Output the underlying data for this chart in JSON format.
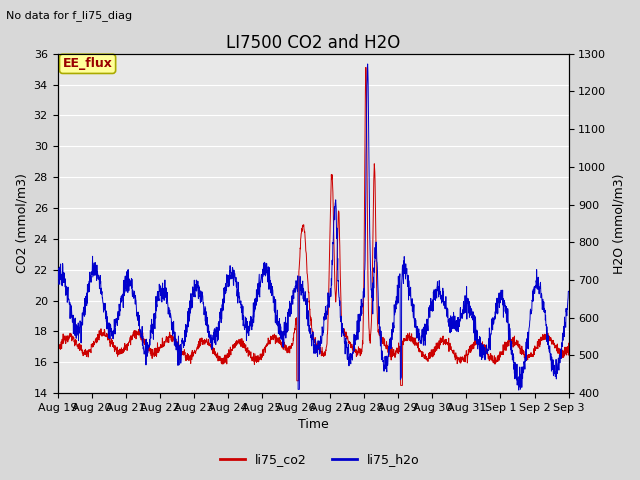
{
  "title": "LI7500 CO2 and H2O",
  "top_left_text": "No data for f_li75_diag",
  "xlabel": "Time",
  "ylabel_left": "CO2 (mmol/m3)",
  "ylabel_right": "H2O (mmol/m3)",
  "ylim_left": [
    14,
    36
  ],
  "ylim_right": [
    400,
    1300
  ],
  "yticks_left": [
    14,
    16,
    18,
    20,
    22,
    24,
    26,
    28,
    30,
    32,
    34,
    36
  ],
  "yticks_right": [
    400,
    500,
    600,
    700,
    800,
    900,
    1000,
    1100,
    1200,
    1300
  ],
  "xtick_labels": [
    "Aug 19",
    "Aug 20",
    "Aug 21",
    "Aug 22",
    "Aug 23",
    "Aug 24",
    "Aug 25",
    "Aug 26",
    "Aug 27",
    "Aug 28",
    "Aug 29",
    "Aug 30",
    "Aug 31",
    "Sep 1",
    "Sep 2",
    "Sep 3"
  ],
  "legend_labels": [
    "li75_co2",
    "li75_h2o"
  ],
  "co2_color": "#cc0000",
  "h2o_color": "#0000cc",
  "fig_bg_color": "#d8d8d8",
  "plot_bg_color": "#e8e8e8",
  "annotation_text": "EE_flux",
  "annotation_bg": "#ffff99",
  "annotation_border": "#aaaa00",
  "grid_color": "#ffffff",
  "title_fontsize": 12,
  "axis_label_fontsize": 9,
  "tick_fontsize": 8
}
